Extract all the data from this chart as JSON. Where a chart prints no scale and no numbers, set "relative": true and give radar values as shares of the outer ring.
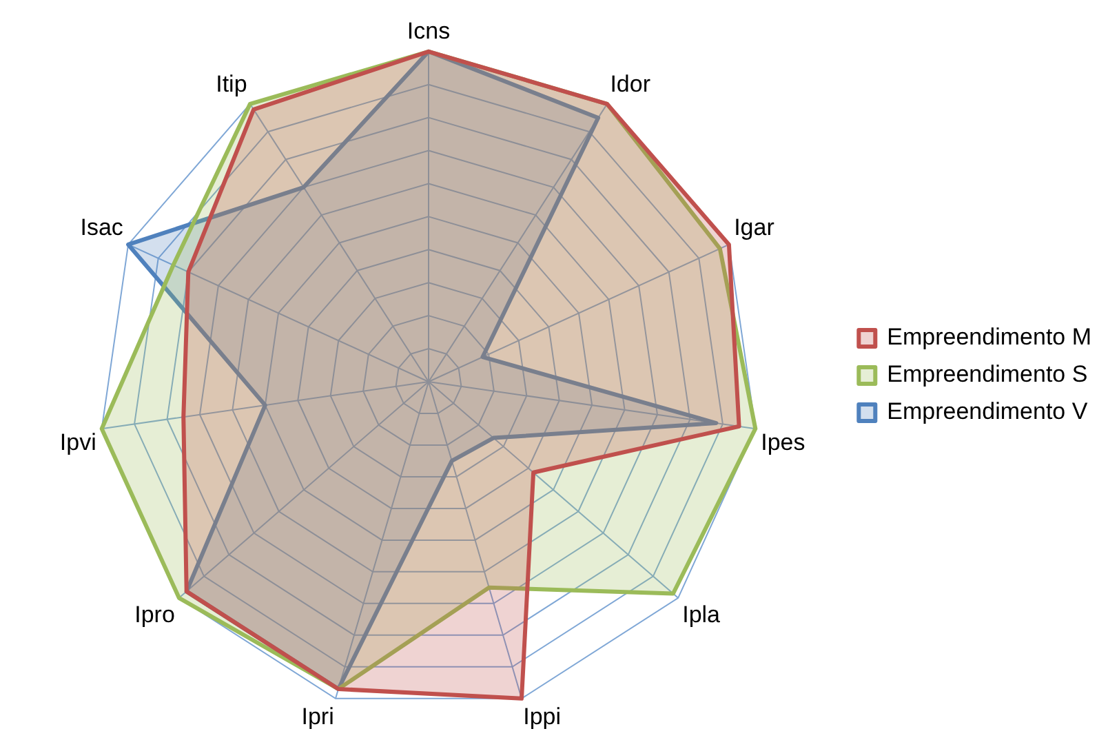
{
  "chart_data": {
    "type": "radar",
    "relative": true,
    "grid": true,
    "legend": "right",
    "marker": "none",
    "categories": [
      "Icns",
      "Idor",
      "Igar",
      "Ipes",
      "Ipla",
      "Ippi",
      "Ipri",
      "Ipro",
      "Ipvi",
      "Isac",
      "Itip"
    ],
    "series": [
      {
        "name": "Empreendimento M",
        "color": "#c0504d",
        "values": [
          1,
          1,
          1,
          0.95,
          0.42,
          1,
          0.97,
          0.97,
          0.75,
          0.8,
          0.98
        ]
      },
      {
        "name": "Empreendimento S",
        "color": "#9bbb59",
        "values": [
          1,
          1,
          0.97,
          1,
          0.98,
          0.65,
          0.97,
          1,
          1,
          0.85,
          1
        ]
      },
      {
        "name": "Empreendimento V",
        "color": "#4f81bd",
        "values": [
          1,
          0.95,
          0.18,
          0.88,
          0.26,
          0.25,
          0.97,
          0.97,
          0.5,
          1,
          0.7
        ]
      }
    ]
  }
}
